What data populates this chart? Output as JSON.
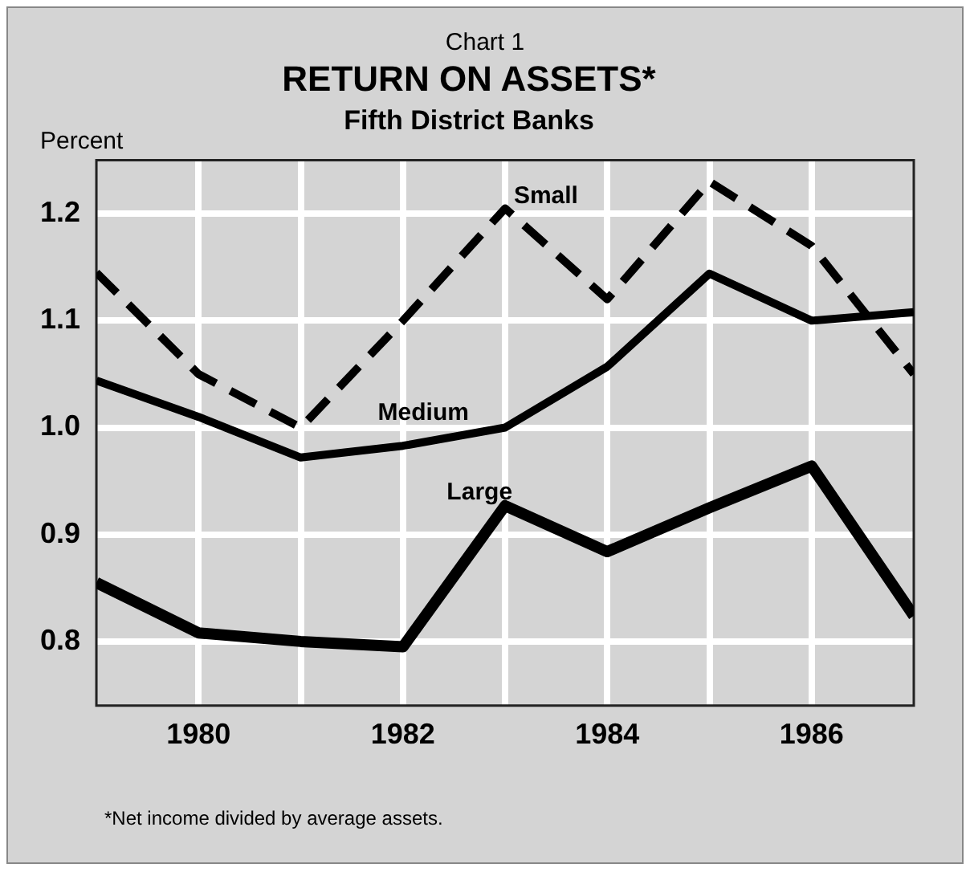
{
  "chart_data": {
    "type": "line",
    "title": "RETURN ON ASSETS*",
    "subtitle": "Fifth District Banks",
    "ylabel": "Percent",
    "annotations": [
      "Chart 1",
      "*Net income divided by average assets."
    ],
    "x": [
      1979,
      1980,
      1981,
      1982,
      1983,
      1984,
      1985,
      1986,
      1987
    ],
    "series": [
      {
        "name": "Small",
        "color": "#000000",
        "line_style": "dashed",
        "values": [
          1.145,
          1.05,
          1.0,
          1.1,
          1.205,
          1.12,
          1.23,
          1.17,
          1.05
        ]
      },
      {
        "name": "Medium",
        "color": "#000000",
        "line_style": "solid",
        "values": [
          1.044,
          1.01,
          0.972,
          0.983,
          1.0,
          1.057,
          1.144,
          1.1,
          1.108
        ]
      },
      {
        "name": "Large",
        "color": "#000000",
        "line_style": "solid",
        "values": [
          0.855,
          0.808,
          0.8,
          0.795,
          0.927,
          0.884,
          0.925,
          0.964,
          0.824
        ]
      }
    ],
    "xlim": [
      1979,
      1987
    ],
    "xticks": [
      {
        "value": 1980,
        "label": "1980"
      },
      {
        "value": 1981,
        "label": null
      },
      {
        "value": 1982,
        "label": "1982"
      },
      {
        "value": 1983,
        "label": null
      },
      {
        "value": 1984,
        "label": "1984"
      },
      {
        "value": 1985,
        "label": null
      },
      {
        "value": 1986,
        "label": "1986"
      }
    ],
    "ylim": [
      0.74,
      1.25
    ],
    "yticks": [
      0.8,
      0.9,
      {
        "value": 1.0,
        "label": "1.0"
      },
      1.1,
      1.2
    ],
    "grid": true,
    "legend": false,
    "marker": "none"
  }
}
